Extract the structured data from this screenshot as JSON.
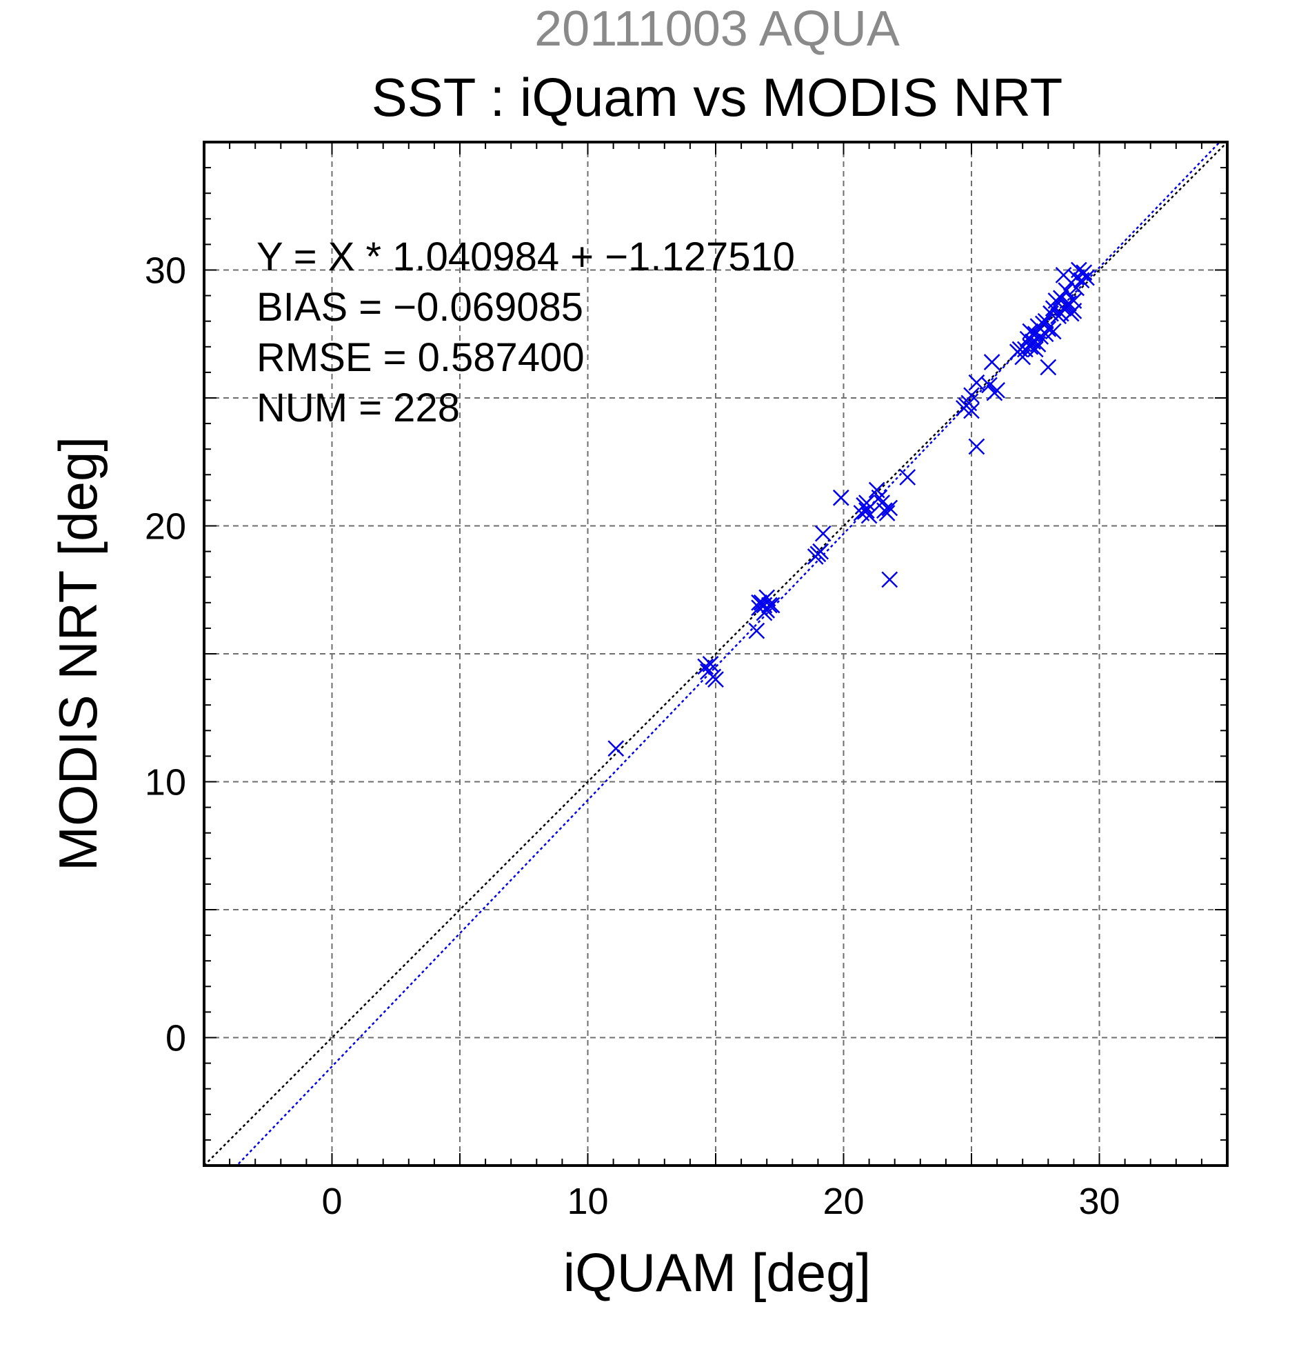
{
  "header": {
    "date_title": "20111003 AQUA",
    "main_title": "SST : iQuam vs MODIS NRT"
  },
  "stats": {
    "equation": "Y = X * 1.040984 + −1.127510",
    "bias": "BIAS = −0.069085",
    "rmse": "RMSE = 0.587400",
    "num": "NUM = 228"
  },
  "colors": {
    "title_gray": "#8a8a8a",
    "point_blue": "#0000ee",
    "fit_blue": "#0000ee",
    "identity_black": "#000000",
    "grid_gray": "#6e6e6e"
  },
  "chart_data": {
    "type": "scatter",
    "title": "SST : iQuam vs MODIS NRT",
    "subtitle": "20111003 AQUA",
    "xlabel": "iQUAM [deg]",
    "ylabel": "MODIS NRT [deg]",
    "xlim": [
      -5,
      35
    ],
    "ylim": [
      -5,
      35
    ],
    "x_ticks": [
      0,
      10,
      20,
      30
    ],
    "y_ticks": [
      0,
      10,
      20,
      30
    ],
    "x_tick_labels": [
      "0",
      "10",
      "20",
      "30"
    ],
    "y_tick_labels": [
      "0",
      "10",
      "20",
      "30"
    ],
    "grid": true,
    "grid_step": 5,
    "marker": "x",
    "fit_line": {
      "slope": 1.040984,
      "intercept": -1.12751
    },
    "identity_line": {
      "slope": 1,
      "intercept": 0
    },
    "points": [
      [
        11.1,
        11.3
      ],
      [
        14.6,
        14.5
      ],
      [
        14.7,
        14.3
      ],
      [
        14.9,
        14.1
      ],
      [
        15.0,
        14.0
      ],
      [
        14.8,
        14.6
      ],
      [
        16.6,
        15.9
      ],
      [
        16.7,
        16.8
      ],
      [
        16.8,
        17.0
      ],
      [
        16.9,
        16.9
      ],
      [
        17.0,
        16.7
      ],
      [
        17.0,
        17.2
      ],
      [
        17.1,
        16.9
      ],
      [
        17.2,
        16.9
      ],
      [
        16.9,
        16.6
      ],
      [
        16.7,
        17.0
      ],
      [
        18.9,
        18.8
      ],
      [
        19.0,
        18.9
      ],
      [
        19.1,
        19.0
      ],
      [
        19.2,
        19.7
      ],
      [
        19.9,
        21.1
      ],
      [
        20.7,
        20.5
      ],
      [
        20.8,
        20.8
      ],
      [
        20.9,
        20.6
      ],
      [
        21.0,
        20.4
      ],
      [
        20.9,
        20.9
      ],
      [
        21.3,
        21.4
      ],
      [
        21.4,
        21.1
      ],
      [
        21.5,
        20.9
      ],
      [
        21.6,
        20.6
      ],
      [
        21.7,
        20.5
      ],
      [
        21.8,
        20.7
      ],
      [
        21.8,
        17.9
      ],
      [
        22.5,
        21.9
      ],
      [
        24.7,
        24.6
      ],
      [
        24.8,
        24.7
      ],
      [
        24.9,
        24.8
      ],
      [
        25.0,
        24.5
      ],
      [
        25.0,
        25.1
      ],
      [
        25.2,
        25.6
      ],
      [
        25.2,
        23.1
      ],
      [
        25.7,
        25.5
      ],
      [
        25.8,
        26.4
      ],
      [
        25.9,
        25.2
      ],
      [
        26.0,
        25.3
      ],
      [
        26.8,
        26.8
      ],
      [
        26.9,
        26.9
      ],
      [
        27.0,
        26.6
      ],
      [
        27.1,
        26.9
      ],
      [
        27.2,
        27.3
      ],
      [
        27.3,
        27.0
      ],
      [
        27.3,
        27.6
      ],
      [
        27.4,
        27.2
      ],
      [
        27.5,
        27.5
      ],
      [
        27.5,
        26.9
      ],
      [
        27.6,
        27.8
      ],
      [
        27.7,
        27.4
      ],
      [
        27.8,
        27.9
      ],
      [
        27.9,
        28.0
      ],
      [
        28.0,
        27.7
      ],
      [
        28.0,
        26.2
      ],
      [
        28.1,
        28.3
      ],
      [
        28.2,
        28.5
      ],
      [
        28.3,
        28.8
      ],
      [
        28.4,
        28.2
      ],
      [
        28.5,
        28.9
      ],
      [
        28.6,
        28.5
      ],
      [
        28.7,
        29.2
      ],
      [
        28.8,
        28.7
      ],
      [
        28.9,
        29.5
      ],
      [
        29.0,
        28.8
      ],
      [
        29.0,
        28.4
      ],
      [
        29.1,
        29.7
      ],
      [
        29.2,
        30.0
      ],
      [
        29.3,
        29.6
      ],
      [
        29.4,
        29.9
      ],
      [
        29.5,
        29.7
      ],
      [
        28.5,
        28.3
      ],
      [
        28.6,
        29.8
      ],
      [
        28.9,
        28.3
      ],
      [
        27.9,
        27.5
      ],
      [
        28.2,
        27.6
      ],
      [
        27.6,
        27.1
      ],
      [
        28.7,
        28.6
      ],
      [
        29.1,
        29.3
      ]
    ]
  }
}
